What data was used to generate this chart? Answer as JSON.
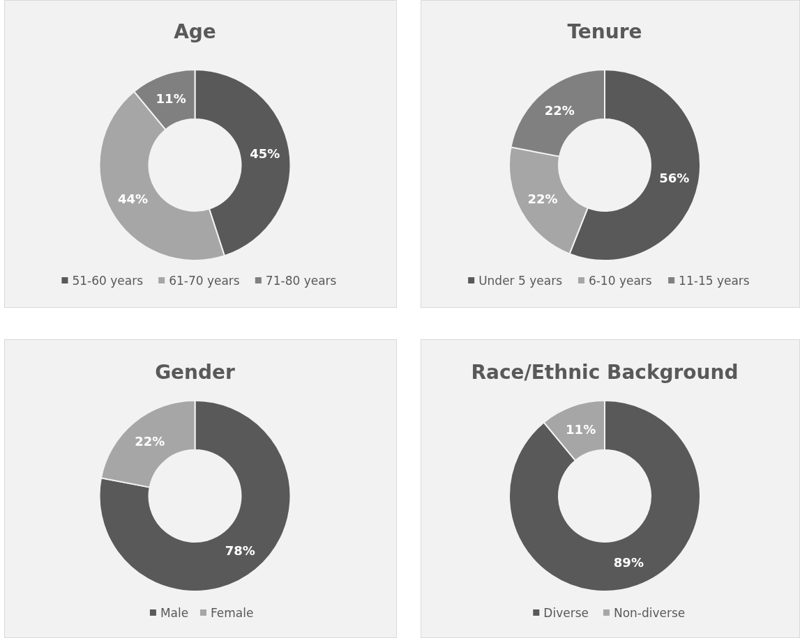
{
  "chart_data": [
    {
      "type": "donut",
      "title": "Age",
      "categories": [
        "51-60 years",
        "61-70 years",
        "71-80 years"
      ],
      "values": [
        45,
        44,
        11
      ],
      "value_labels": [
        "45%",
        "44%",
        "11%"
      ],
      "colors": [
        "#595959",
        "#a6a6a6",
        "#808080"
      ],
      "legend": "bottom"
    },
    {
      "type": "donut",
      "title": "Tenure",
      "categories": [
        "Under 5 years",
        "6-10 years",
        "11-15 years"
      ],
      "values": [
        56,
        22,
        22
      ],
      "value_labels": [
        "56%",
        "22%",
        "22%"
      ],
      "colors": [
        "#595959",
        "#a6a6a6",
        "#808080"
      ],
      "legend": "bottom"
    },
    {
      "type": "donut",
      "title": "Gender",
      "categories": [
        "Male",
        "Female"
      ],
      "values": [
        78,
        22
      ],
      "value_labels": [
        "78%",
        "22%"
      ],
      "colors": [
        "#595959",
        "#a6a6a6"
      ],
      "legend": "bottom"
    },
    {
      "type": "donut",
      "title": "Race/Ethnic Background",
      "categories": [
        "Diverse",
        "Non-diverse"
      ],
      "values": [
        89,
        11
      ],
      "value_labels": [
        "89%",
        "11%"
      ],
      "colors": [
        "#595959",
        "#a6a6a6"
      ],
      "legend": "bottom"
    }
  ]
}
